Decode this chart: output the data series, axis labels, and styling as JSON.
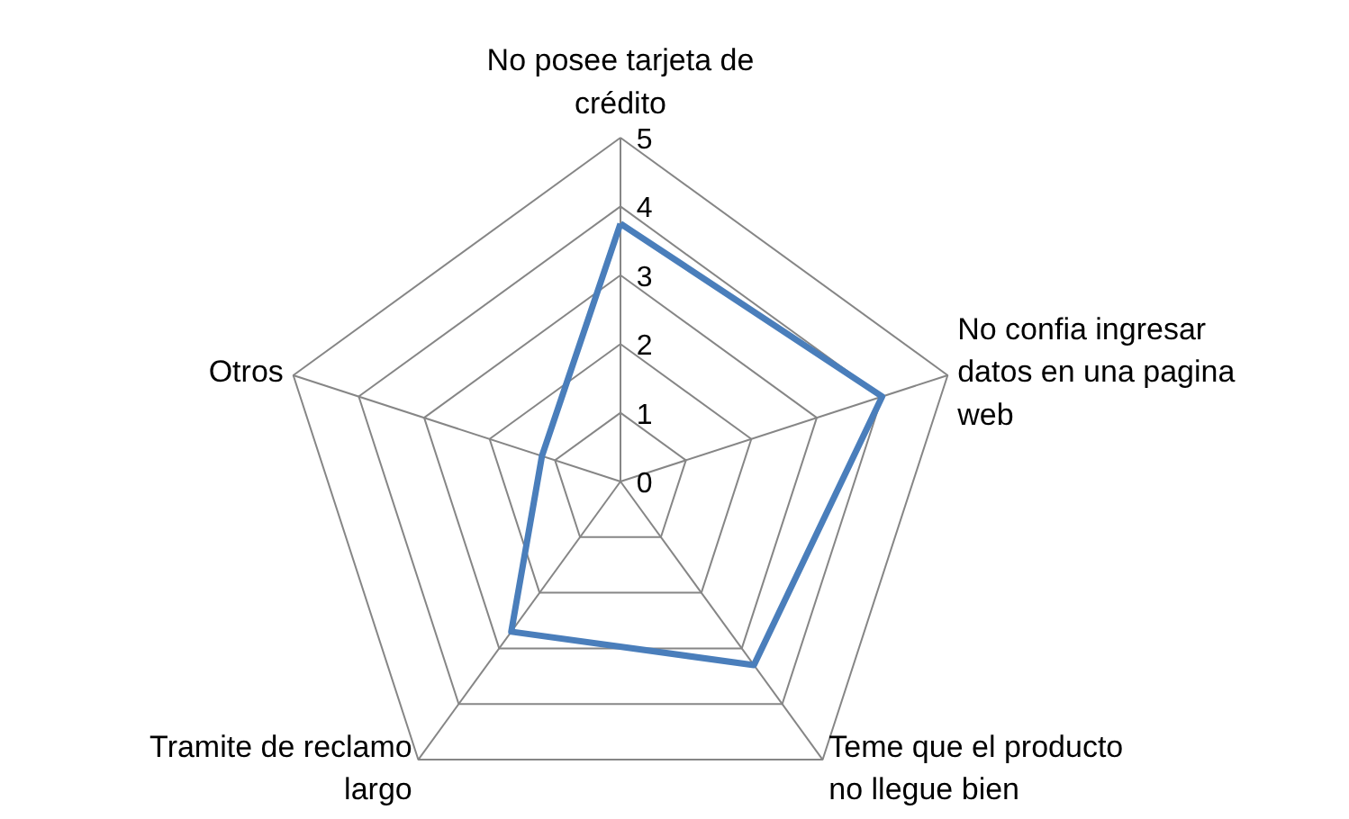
{
  "chart_data": {
    "type": "radar",
    "categories": [
      "No posee tarjeta de crédito",
      "No confia ingresar datos en una pagina web",
      "Teme que el producto no llegue bien",
      "Tramite de reclamo largo",
      "Otros"
    ],
    "series": [
      {
        "color": "#4a7ebb",
        "values": [
          3.75,
          4.0,
          3.3,
          2.7,
          1.2
        ]
      }
    ],
    "ylim": [
      0,
      5
    ],
    "yticks": [
      0,
      1,
      2,
      3,
      4,
      5
    ],
    "grid": true
  }
}
